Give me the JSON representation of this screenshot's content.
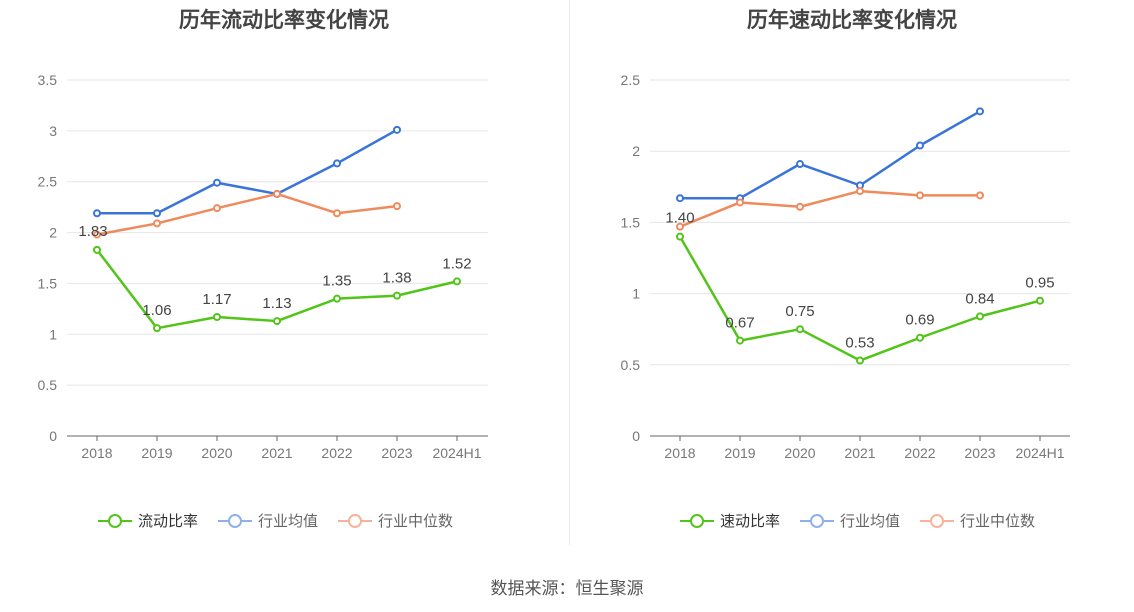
{
  "charts": [
    {
      "title": "历年流动比率变化情况",
      "legend": [
        "流动比率",
        "行业均值",
        "行业中位数"
      ]
    },
    {
      "title": "历年速动比率变化情况",
      "legend": [
        "速动比率",
        "行业均值",
        "行业中位数"
      ]
    }
  ],
  "source": "数据来源：恒生聚源",
  "chart_data": [
    {
      "type": "line",
      "title": "历年流动比率变化情况",
      "categories": [
        "2018",
        "2019",
        "2020",
        "2021",
        "2022",
        "2023",
        "2024H1"
      ],
      "yticks": [
        "0",
        "0.5",
        "1",
        "1.5",
        "2",
        "2.5",
        "3",
        "3.5"
      ],
      "ylim": [
        0,
        3.5
      ],
      "series": [
        {
          "name": "流动比率",
          "color": "#52c41a",
          "values": [
            1.83,
            1.06,
            1.17,
            1.13,
            1.35,
            1.38,
            1.52
          ],
          "labels": [
            "1.83",
            "1.06",
            "1.17",
            "1.13",
            "1.35",
            "1.38",
            "1.52"
          ]
        },
        {
          "name": "行业均值",
          "color": "#3a74d9",
          "values": [
            2.19,
            2.19,
            2.49,
            2.38,
            2.68,
            3.01,
            null
          ]
        },
        {
          "name": "行业中位数",
          "color": "#f08a5d",
          "values": [
            1.98,
            2.09,
            2.24,
            2.38,
            2.19,
            2.26,
            null
          ]
        }
      ],
      "legend_position": "bottom",
      "grid": true
    },
    {
      "type": "line",
      "title": "历年速动比率变化情况",
      "categories": [
        "2018",
        "2019",
        "2020",
        "2021",
        "2022",
        "2023",
        "2024H1"
      ],
      "yticks": [
        "0",
        "0.5",
        "1",
        "1.5",
        "2",
        "2.5"
      ],
      "ylim": [
        0,
        2.5
      ],
      "series": [
        {
          "name": "速动比率",
          "color": "#52c41a",
          "values": [
            1.4,
            0.67,
            0.75,
            0.53,
            0.69,
            0.84,
            0.95
          ],
          "labels": [
            "1.40",
            "0.67",
            "0.75",
            "0.53",
            "0.69",
            "0.84",
            "0.95"
          ]
        },
        {
          "name": "行业均值",
          "color": "#3a74d9",
          "values": [
            1.67,
            1.67,
            1.91,
            1.76,
            2.04,
            2.28,
            null
          ]
        },
        {
          "name": "行业中位数",
          "color": "#f08a5d",
          "values": [
            1.47,
            1.64,
            1.61,
            1.72,
            1.69,
            1.69,
            null
          ]
        }
      ],
      "legend_position": "bottom",
      "grid": true
    }
  ]
}
